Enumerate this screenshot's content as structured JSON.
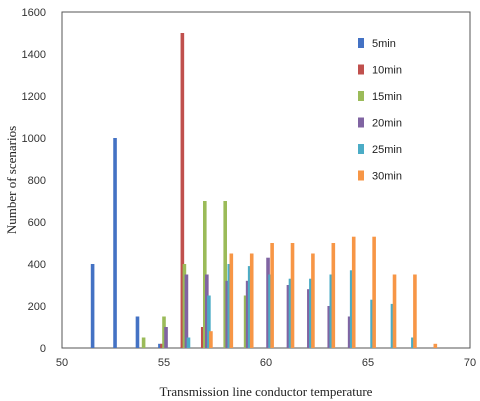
{
  "chart_data": {
    "type": "bar",
    "xlabel": "Transmission line conductor temperature",
    "ylabel": "Number of scenarios",
    "xlim": [
      50,
      70
    ],
    "ylim": [
      0,
      1600
    ],
    "xticks": [
      50,
      55,
      60,
      65,
      70
    ],
    "yticks": [
      0,
      200,
      400,
      600,
      800,
      1000,
      1200,
      1400,
      1600
    ],
    "grid": false,
    "legend_position": "right",
    "series": [
      {
        "name": "5min",
        "color": "#4472C4",
        "points": [
          [
            51.5,
            400
          ],
          [
            52.6,
            1000
          ],
          [
            53.7,
            150
          ],
          [
            54.8,
            20
          ]
        ]
      },
      {
        "name": "10min",
        "color": "#C0504D",
        "points": [
          [
            54.9,
            20
          ],
          [
            55.9,
            1500
          ],
          [
            56.9,
            100
          ]
        ]
      },
      {
        "name": "15min",
        "color": "#9BBB59",
        "points": [
          [
            54.0,
            50
          ],
          [
            55.0,
            150
          ],
          [
            56.0,
            400
          ],
          [
            57.0,
            700
          ],
          [
            58.0,
            700
          ],
          [
            59.0,
            250
          ]
        ]
      },
      {
        "name": "20min",
        "color": "#8064A2",
        "points": [
          [
            55.1,
            100
          ],
          [
            56.1,
            350
          ],
          [
            57.1,
            350
          ],
          [
            58.1,
            320
          ],
          [
            59.1,
            320
          ],
          [
            60.1,
            430
          ],
          [
            61.1,
            300
          ],
          [
            62.1,
            280
          ],
          [
            63.1,
            200
          ],
          [
            64.1,
            150
          ]
        ]
      },
      {
        "name": "25min",
        "color": "#4BACC6",
        "points": [
          [
            56.2,
            50
          ],
          [
            57.2,
            250
          ],
          [
            58.2,
            400
          ],
          [
            59.2,
            390
          ],
          [
            60.2,
            350
          ],
          [
            61.2,
            330
          ],
          [
            62.2,
            330
          ],
          [
            63.2,
            350
          ],
          [
            64.2,
            370
          ],
          [
            65.2,
            230
          ],
          [
            66.2,
            210
          ],
          [
            67.2,
            50
          ]
        ]
      },
      {
        "name": "30min",
        "color": "#F79646",
        "points": [
          [
            57.3,
            80
          ],
          [
            58.3,
            450
          ],
          [
            59.3,
            450
          ],
          [
            60.3,
            500
          ],
          [
            61.3,
            500
          ],
          [
            62.3,
            450
          ],
          [
            63.3,
            500
          ],
          [
            64.3,
            530
          ],
          [
            65.3,
            530
          ],
          [
            66.3,
            350
          ],
          [
            67.3,
            350
          ],
          [
            68.3,
            20
          ]
        ]
      }
    ]
  }
}
